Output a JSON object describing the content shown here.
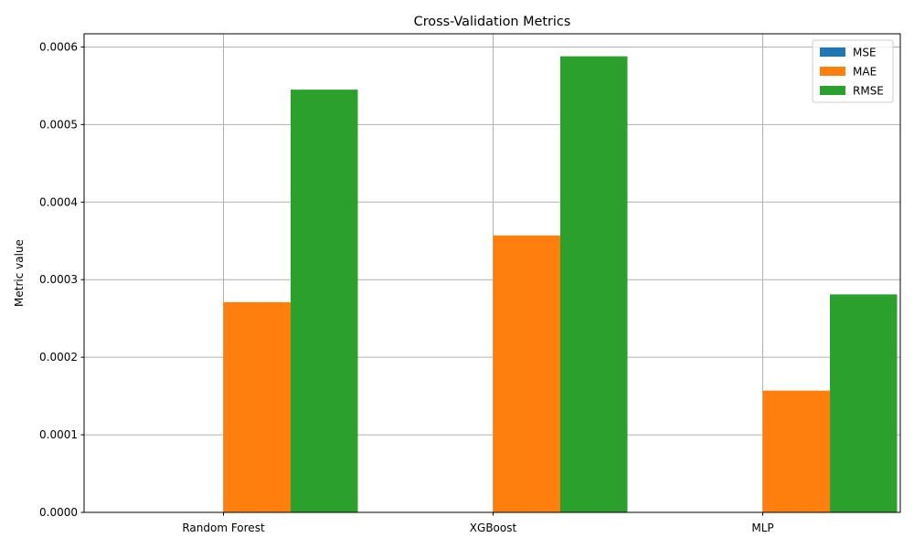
{
  "chart_data": {
    "type": "bar",
    "title": "Cross-Validation Metrics",
    "xlabel": "",
    "ylabel": "Metric value",
    "categories": [
      "Random Forest",
      "XGBoost",
      "MLP"
    ],
    "series": [
      {
        "name": "MSE",
        "color": "#1f77b4",
        "values": [
          3e-07,
          3.5e-07,
          8e-08
        ]
      },
      {
        "name": "MAE",
        "color": "#ff7f0e",
        "values": [
          0.000271,
          0.000357,
          0.000157
        ]
      },
      {
        "name": "RMSE",
        "color": "#2ca02c",
        "values": [
          0.000545,
          0.000588,
          0.000281
        ]
      }
    ],
    "ylim": [
      0,
      0.000617
    ],
    "yticks": [
      0,
      0.0001,
      0.0002,
      0.0003,
      0.0004,
      0.0005,
      0.0006
    ],
    "ytick_labels": [
      "0.0000",
      "0.0001",
      "0.0002",
      "0.0003",
      "0.0004",
      "0.0005",
      "0.0006"
    ],
    "grid": true,
    "legend_position": "top-right"
  }
}
